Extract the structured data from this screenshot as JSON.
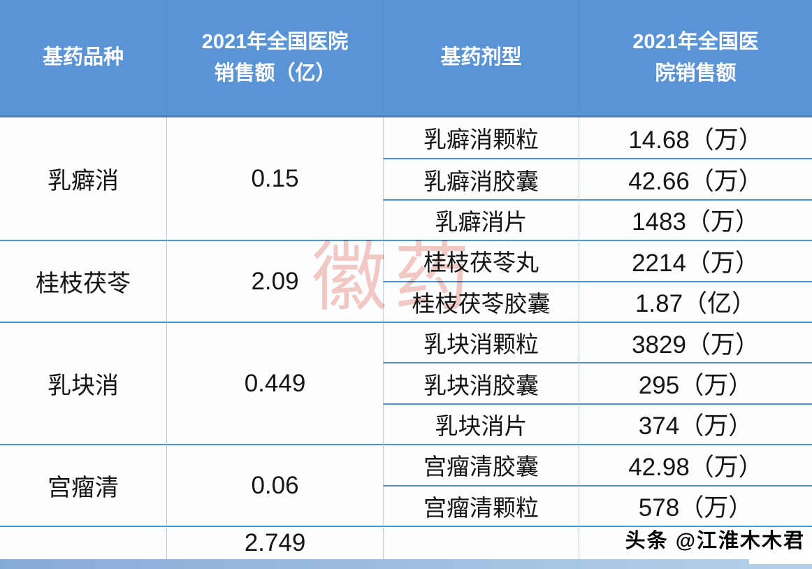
{
  "header": {
    "variety": "基药品种",
    "sales_yi": "2021年全国医院\n销售额（亿）",
    "form": "基药剂型",
    "sales": "2021年全国医\n院销售额"
  },
  "groups": [
    {
      "variety": "乳癖消",
      "total": "0.15",
      "forms": [
        {
          "name": "乳癖消颗粒",
          "sales": "14.68（万）"
        },
        {
          "name": "乳癖消胶囊",
          "sales": "42.66（万）"
        },
        {
          "name": "乳癖消片",
          "sales": "1483（万）"
        }
      ]
    },
    {
      "variety": "桂枝茯苓",
      "total": "2.09",
      "forms": [
        {
          "name": "桂枝茯苓丸",
          "sales": "2214（万）"
        },
        {
          "name": "桂枝茯苓胶囊",
          "sales": "1.87（亿）"
        }
      ]
    },
    {
      "variety": "乳块消",
      "total": "0.449",
      "forms": [
        {
          "name": "乳块消颗粒",
          "sales": "3829（万）"
        },
        {
          "name": "乳块消胶囊",
          "sales": "295（万）"
        },
        {
          "name": "乳块消片",
          "sales": "374（万）"
        }
      ]
    },
    {
      "variety": "宫瘤清",
      "total": "0.06",
      "forms": [
        {
          "name": "宫瘤清胶囊",
          "sales": "42.98（万）"
        },
        {
          "name": "宫瘤清颗粒",
          "sales": "578（万）"
        }
      ]
    }
  ],
  "footer": {
    "grand_total": "2.749"
  },
  "watermarks": {
    "center": "徽药",
    "credit": "头条 @江淮木木君"
  },
  "colors": {
    "header_bg": "#5b94d4",
    "row_line": "#4f94cd",
    "col_line": "#c3cad2",
    "strip": "#86abd6",
    "center_watermark": "#e79488"
  }
}
